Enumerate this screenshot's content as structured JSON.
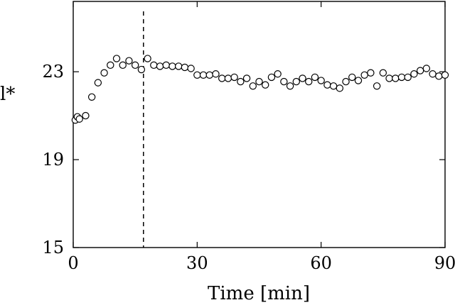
{
  "chart_data": {
    "type": "scatter",
    "xlabel": "Time [min]",
    "ylabel": "l*",
    "xlim": [
      0,
      90
    ],
    "ylim": [
      15,
      26.2
    ],
    "x_ticks": [
      0,
      30,
      60,
      90
    ],
    "y_ticks": [
      15,
      19,
      23
    ],
    "grid": false,
    "marker": "open-circle",
    "reference_line": {
      "x": 17,
      "style": "dashed"
    },
    "series": [
      {
        "x": [
          0.5,
          1,
          1.5,
          3,
          4.5,
          6,
          7.5,
          9,
          10.5,
          12,
          13.5,
          15,
          16.5,
          18,
          19.5,
          21,
          22.5,
          24,
          25.5,
          27,
          28.5,
          30,
          31.5,
          33,
          34.5,
          36,
          37.5,
          39,
          40.5,
          42,
          43.5,
          45,
          46.5,
          48,
          49.5,
          51,
          52.5,
          54,
          55.5,
          57,
          58.5,
          60,
          61.5,
          63,
          64.5,
          66,
          67.5,
          69,
          70.5,
          72,
          73.5,
          75,
          76.5,
          78,
          79.5,
          81,
          82.5,
          84,
          85.5,
          87,
          88.5,
          90
        ],
        "y": [
          20.8,
          20.95,
          20.85,
          21.0,
          21.85,
          22.5,
          22.95,
          23.3,
          23.6,
          23.3,
          23.5,
          23.3,
          23.1,
          23.6,
          23.3,
          23.25,
          23.3,
          23.25,
          23.25,
          23.2,
          23.15,
          22.85,
          22.85,
          22.85,
          22.9,
          22.7,
          22.7,
          22.75,
          22.55,
          22.7,
          22.35,
          22.55,
          22.4,
          22.75,
          22.9,
          22.55,
          22.35,
          22.55,
          22.7,
          22.55,
          22.75,
          22.6,
          22.4,
          22.35,
          22.25,
          22.55,
          22.75,
          22.6,
          22.85,
          22.95,
          22.35,
          22.95,
          22.7,
          22.7,
          22.75,
          22.75,
          22.9,
          23.05,
          23.15,
          22.9,
          22.8,
          22.85
        ]
      }
    ]
  }
}
